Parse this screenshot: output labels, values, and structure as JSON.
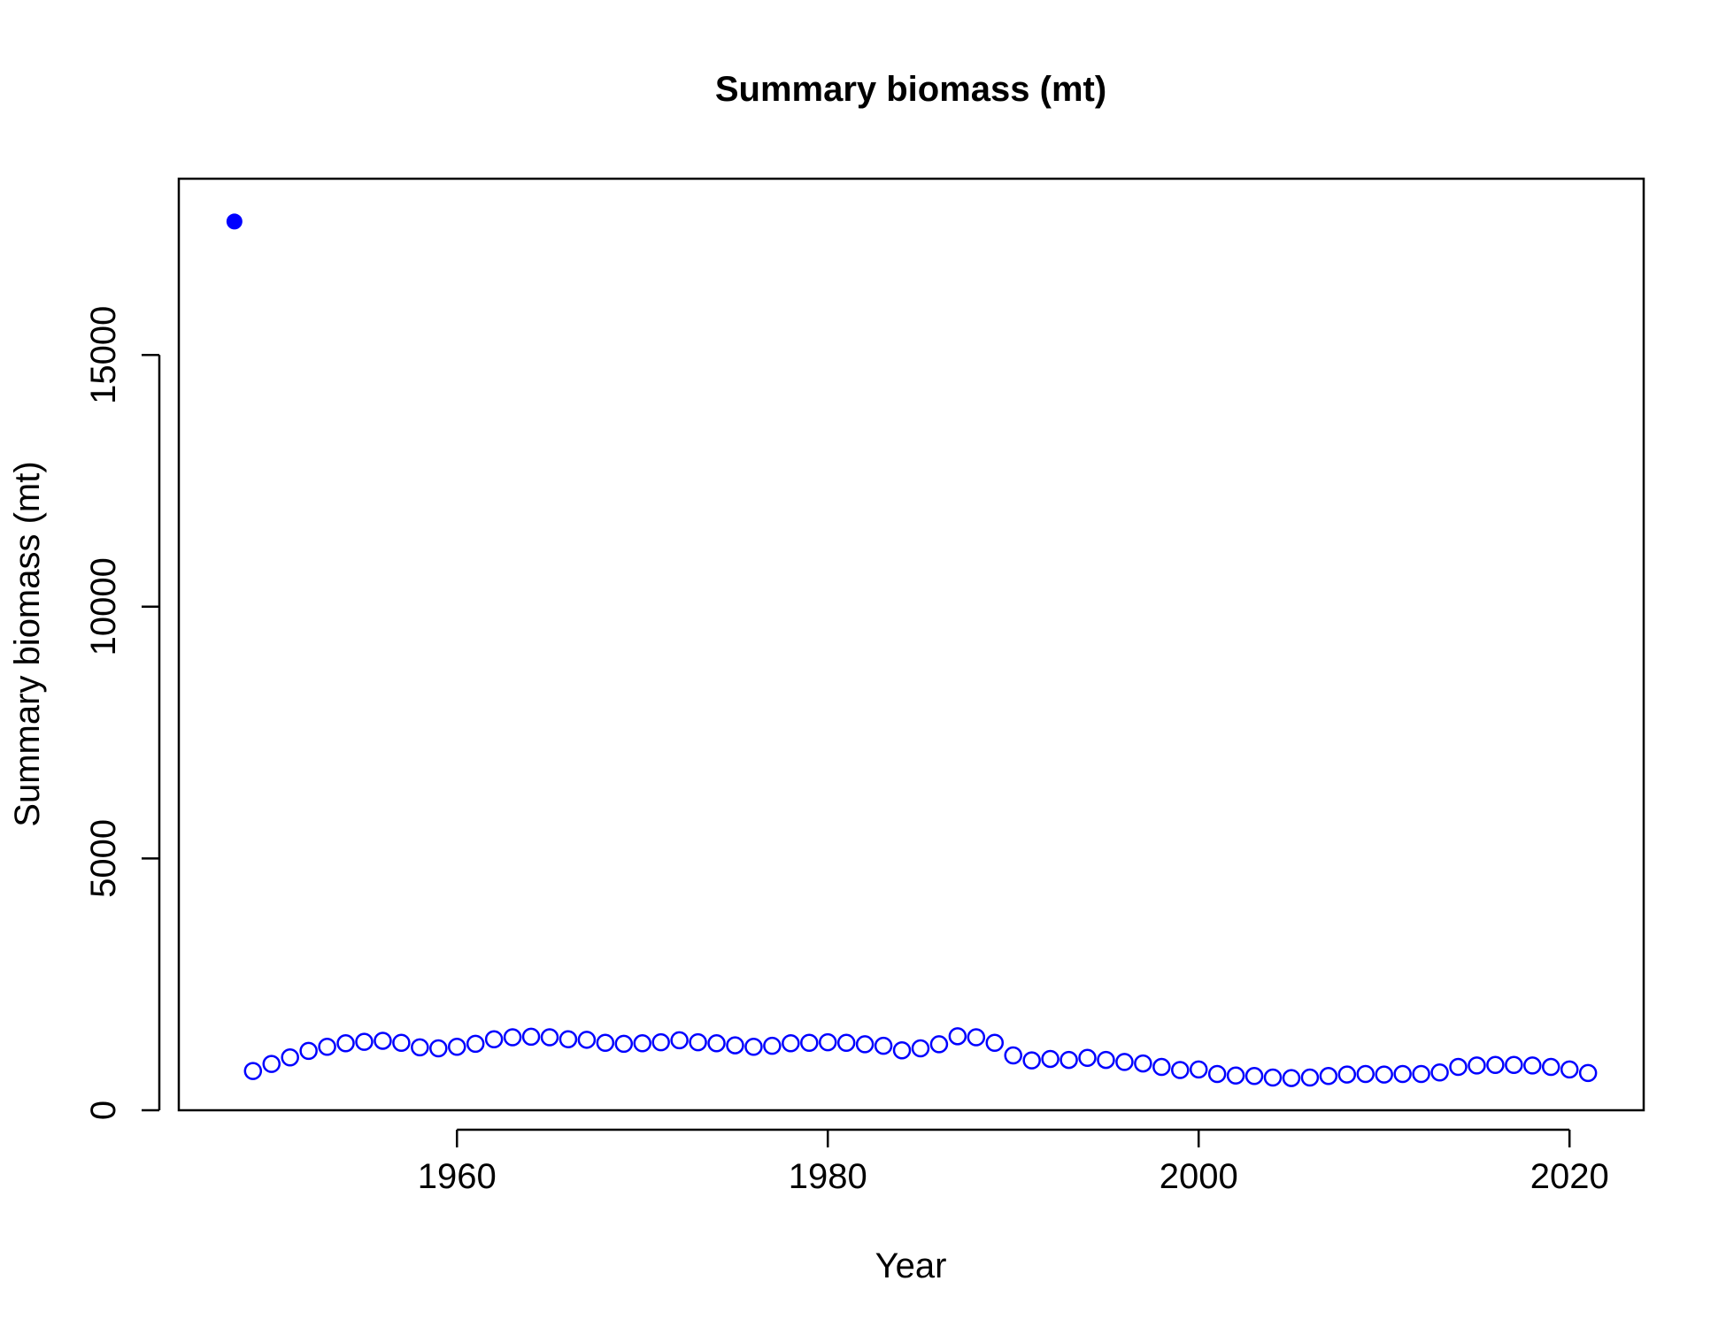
{
  "chart_data": {
    "type": "scatter",
    "title": "Summary biomass (mt)",
    "xlabel": "Year",
    "ylabel": "Summary biomass (mt)",
    "xlim": [
      1945,
      2024
    ],
    "ylim": [
      0,
      18500
    ],
    "x_ticks": [
      1960,
      1980,
      2000,
      2020
    ],
    "y_ticks": [
      0,
      5000,
      10000,
      15000
    ],
    "grid": false,
    "legend": "none",
    "colors": {
      "point": "#0000FF",
      "axis": "#000000",
      "background": "#FFFFFF"
    },
    "virgin_point": {
      "x": 1948,
      "y": 17650,
      "marker": "filled-circle"
    },
    "series": [
      {
        "marker": "open-circle",
        "x": [
          1949,
          1950,
          1951,
          1952,
          1953,
          1954,
          1955,
          1956,
          1957,
          1958,
          1959,
          1960,
          1961,
          1962,
          1963,
          1964,
          1965,
          1966,
          1967,
          1968,
          1969,
          1970,
          1971,
          1972,
          1973,
          1974,
          1975,
          1976,
          1977,
          1978,
          1979,
          1980,
          1981,
          1982,
          1983,
          1984,
          1985,
          1986,
          1987,
          1988,
          1989,
          1990,
          1991,
          1992,
          1993,
          1994,
          1995,
          1996,
          1997,
          1998,
          1999,
          2000,
          2001,
          2002,
          2003,
          2004,
          2005,
          2006,
          2007,
          2008,
          2009,
          2010,
          2011,
          2012,
          2013,
          2014,
          2015,
          2016,
          2017,
          2018,
          2019,
          2020,
          2021
        ],
        "y": [
          780,
          920,
          1050,
          1180,
          1260,
          1330,
          1360,
          1380,
          1340,
          1250,
          1230,
          1260,
          1320,
          1410,
          1450,
          1460,
          1450,
          1410,
          1400,
          1340,
          1320,
          1330,
          1350,
          1390,
          1350,
          1330,
          1290,
          1260,
          1280,
          1330,
          1340,
          1350,
          1340,
          1310,
          1280,
          1190,
          1230,
          1310,
          1470,
          1450,
          1340,
          1090,
          990,
          1020,
          1000,
          1040,
          1000,
          960,
          930,
          860,
          800,
          810,
          720,
          690,
          680,
          650,
          640,
          650,
          680,
          710,
          720,
          710,
          720,
          720,
          750,
          860,
          890,
          900,
          900,
          890,
          860,
          810,
          740
        ]
      }
    ]
  }
}
